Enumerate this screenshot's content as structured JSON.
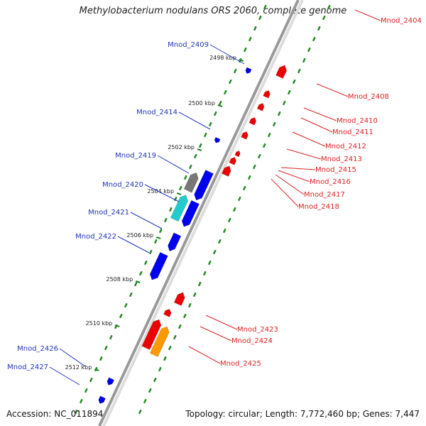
{
  "title": "Methylobacterium nodulans ORS 2060, complete genome",
  "footer": {
    "accession": "Accession: NC_011894",
    "topology": "Topology: circular; Length: 7,772,460 bp; Genes: 7,447"
  },
  "colors": {
    "forward": "#0000ee",
    "reverse": "#ee0000",
    "grey": "#777777",
    "cyan": "#22cccc",
    "orange": "#ff9900",
    "backbone": "#999999",
    "gc": "#228822",
    "leader_forward": "#2233bb",
    "leader_reverse": "#dd2222"
  },
  "ticks": [
    "2498 kbp",
    "2500 kbp",
    "2502 kbp",
    "2504 kbp",
    "2506 kbp",
    "2508 kbp",
    "2510 kbp",
    "2512 kbp"
  ],
  "labels_left": [
    "Mnod_2409",
    "Mnod_2414",
    "Mnod_2419",
    "Mnod_2420",
    "Mnod_2421",
    "Mnod_2422",
    "Mnod_2426",
    "Mnod_2427"
  ],
  "labels_right": [
    "Mnod_2404",
    "Mnod_2408",
    "Mnod_2410",
    "Mnod_2411",
    "Mnod_2412",
    "Mnod_2413",
    "Mnod_2415",
    "Mnod_2416",
    "Mnod_2417",
    "Mnod_2418",
    "Mnod_2423",
    "Mnod_2424",
    "Mnod_2425"
  ]
}
